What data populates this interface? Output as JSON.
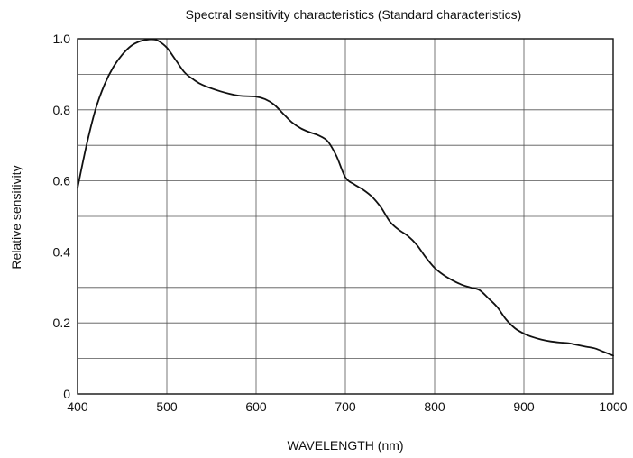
{
  "chart_data": {
    "type": "line",
    "title": "Spectral sensitivity characteristics (Standard characteristics)",
    "xlabel": "WAVELENGTH (nm)",
    "ylabel": "Relative sensitivity",
    "xlim": [
      400,
      1000
    ],
    "ylim": [
      0,
      1.0
    ],
    "x_ticks": [
      400,
      500,
      600,
      700,
      800,
      900,
      1000
    ],
    "x_tick_labels": [
      "400",
      "500",
      "600",
      "700",
      "800",
      "900",
      "1000"
    ],
    "y_ticks": [
      0,
      0.2,
      0.4,
      0.6,
      0.8,
      1.0
    ],
    "y_tick_labels": [
      "0",
      "0.2",
      "0.4",
      "0.6",
      "0.8",
      "1.0"
    ],
    "x_grid": [
      400,
      500,
      600,
      700,
      800,
      900,
      1000
    ],
    "y_grid": [
      0,
      0.1,
      0.2,
      0.3,
      0.4,
      0.5,
      0.6,
      0.7,
      0.8,
      0.9,
      1.0
    ],
    "grid": true,
    "legend": "none",
    "colors": {
      "line": "#111111",
      "grid": "#555555",
      "frame": "#111111"
    },
    "series": [
      {
        "x": [
          400,
          410,
          420,
          430,
          440,
          450,
          460,
          470,
          480,
          485,
          490,
          500,
          510,
          520,
          530,
          540,
          560,
          580,
          600,
          610,
          620,
          630,
          640,
          650,
          660,
          670,
          680,
          690,
          700,
          710,
          720,
          730,
          740,
          750,
          760,
          770,
          780,
          790,
          800,
          810,
          820,
          830,
          840,
          850,
          860,
          870,
          880,
          890,
          900,
          910,
          920,
          930,
          940,
          950,
          960,
          970,
          980,
          990,
          1000
        ],
        "y": [
          0.58,
          0.7,
          0.8,
          0.87,
          0.92,
          0.955,
          0.98,
          0.993,
          0.998,
          0.998,
          0.995,
          0.975,
          0.94,
          0.905,
          0.885,
          0.87,
          0.852,
          0.84,
          0.837,
          0.83,
          0.815,
          0.79,
          0.765,
          0.748,
          0.737,
          0.728,
          0.712,
          0.67,
          0.61,
          0.59,
          0.575,
          0.555,
          0.525,
          0.485,
          0.462,
          0.445,
          0.42,
          0.385,
          0.355,
          0.335,
          0.32,
          0.308,
          0.3,
          0.293,
          0.27,
          0.245,
          0.21,
          0.185,
          0.17,
          0.16,
          0.153,
          0.148,
          0.145,
          0.143,
          0.138,
          0.133,
          0.128,
          0.118,
          0.108
        ]
      }
    ]
  }
}
